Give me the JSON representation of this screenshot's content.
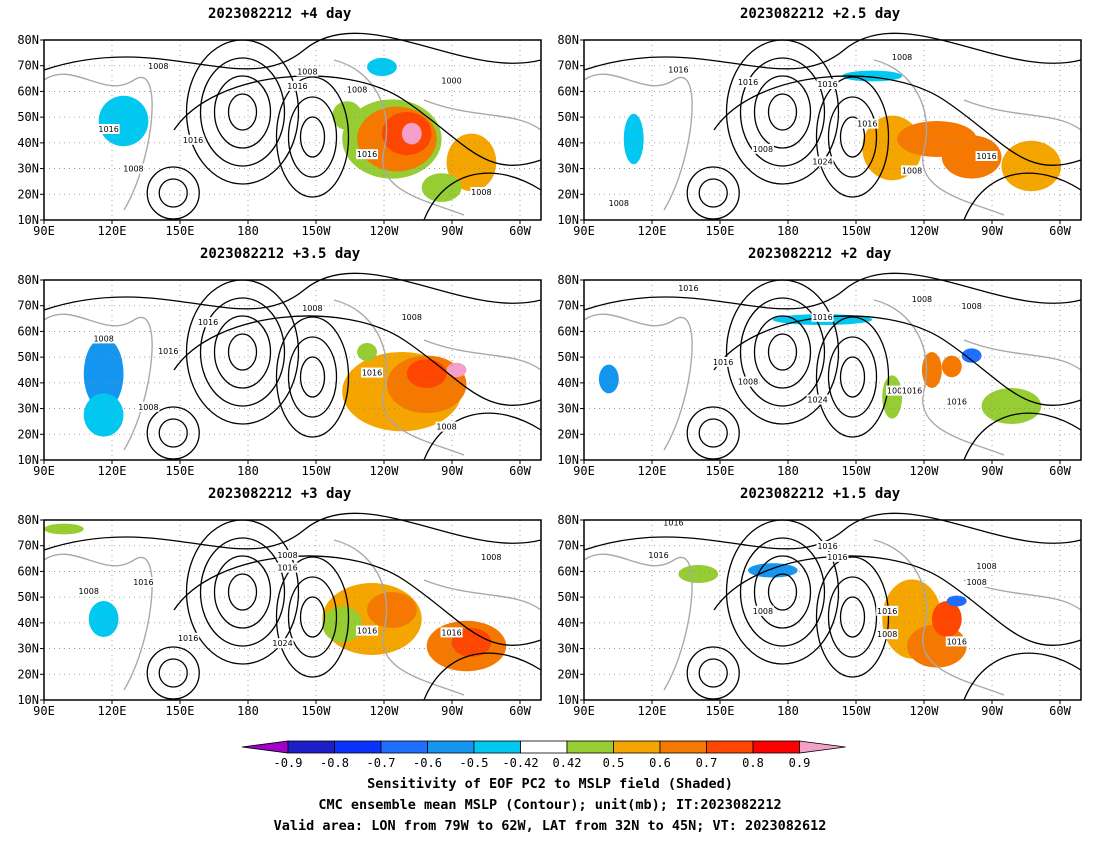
{
  "panels": [
    {
      "title": "2023082212 +4 day",
      "isobars": [
        "1008",
        "1008",
        "1016",
        "1008",
        "1000",
        "1016",
        "1016",
        "1008",
        "1016",
        "1008"
      ]
    },
    {
      "title": "2023082212 +2.5 day",
      "isobars": [
        "1016",
        "1016",
        "1016",
        "1008",
        "1016",
        "1008",
        "1024",
        "1016",
        "1008",
        "1008"
      ]
    },
    {
      "title": "2023082212 +3.5 day",
      "isobars": [
        "1016",
        "1008",
        "1016",
        "1008",
        "1008",
        "1016",
        "1008",
        "1008"
      ]
    },
    {
      "title": "2023082212 +2 day",
      "isobars": [
        "1016",
        "1008",
        "1016",
        "1016",
        "1008",
        "1024",
        "1008",
        "1016",
        "1016",
        "1008"
      ]
    },
    {
      "title": "2023082212 +3 day",
      "isobars": [
        "1008",
        "1016",
        "1016",
        "1008",
        "1016",
        "1024",
        "1016",
        "1016",
        "1008"
      ]
    },
    {
      "title": "2023082212 +1.5 day",
      "isobars": [
        "1016",
        "1016",
        "1016",
        "1016",
        "1008",
        "1016",
        "1008",
        "1016",
        "1008",
        "1008"
      ]
    }
  ],
  "axes": {
    "lat_ticks": [
      "80N",
      "70N",
      "60N",
      "50N",
      "40N",
      "30N",
      "20N",
      "10N"
    ],
    "lon_ticks": [
      "90E",
      "120E",
      "150E",
      "180",
      "150W",
      "120W",
      "90W",
      "60W"
    ]
  },
  "colorbar": {
    "labels": [
      "-0.9",
      "-0.8",
      "-0.7",
      "-0.6",
      "-0.5",
      "-0.42",
      "0.42",
      "0.5",
      "0.6",
      "0.7",
      "0.8",
      "0.9"
    ],
    "colors": [
      "#a000c8",
      "#1e1ec8",
      "#0a32ff",
      "#1e6eff",
      "#1496f0",
      "#00c8f0",
      "#ffffff",
      "#96cd32",
      "#f5a500",
      "#f57800",
      "#ff4600",
      "#ff0000",
      "#f5a0c8"
    ]
  },
  "caption": {
    "line1": "Sensitivity of EOF PC2 to MSLP field (Shaded)",
    "line2": "CMC ensemble mean MSLP (Contour); unit(mb); IT:2023082212",
    "line3": "Valid area: LON from 79W to 62W, LAT from 32N to 45N; VT: 2023082612"
  }
}
